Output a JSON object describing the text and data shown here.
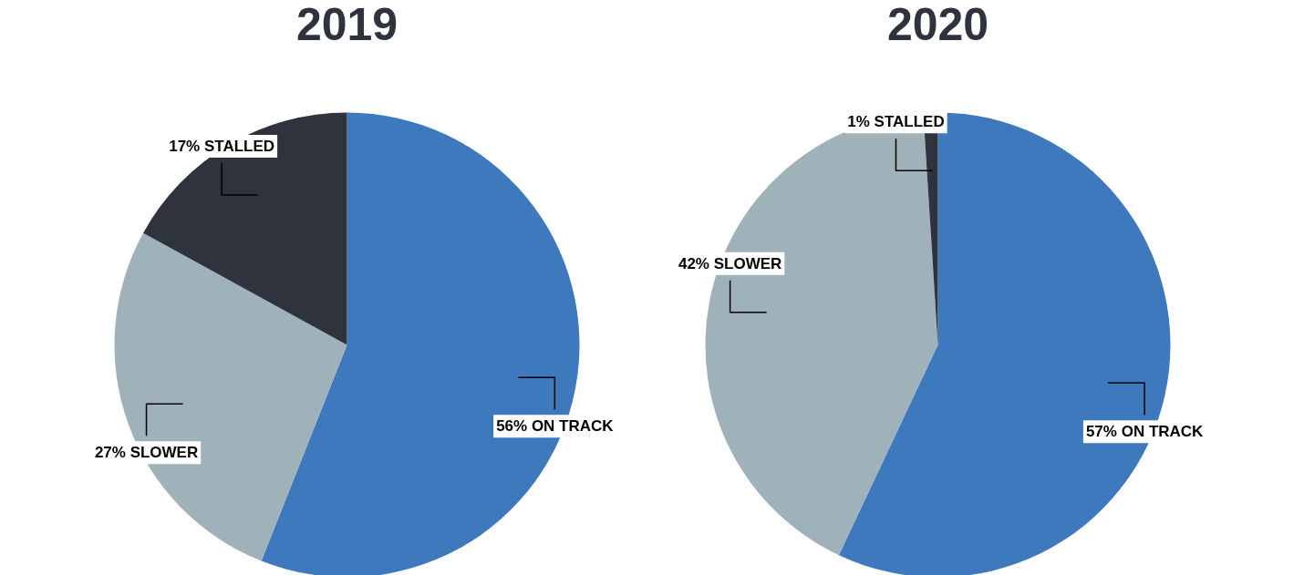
{
  "chart_data": [
    {
      "type": "pie",
      "title": "2019",
      "categories": [
        "ON TRACK",
        "SLOWER",
        "STALLED"
      ],
      "values": [
        56,
        27,
        17
      ],
      "colors": [
        "#3d79bc",
        "#9fb1b9",
        "#2e333e"
      ],
      "value_labels": [
        "56%",
        "27%",
        "17%"
      ]
    },
    {
      "type": "pie",
      "title": "2020",
      "categories": [
        "ON TRACK",
        "SLOWER",
        "STALLED"
      ],
      "values": [
        57,
        42,
        1
      ],
      "colors": [
        "#3d79bc",
        "#9fb1b9",
        "#2e333e"
      ],
      "value_labels": [
        "57%",
        "42%",
        "1%"
      ]
    }
  ]
}
